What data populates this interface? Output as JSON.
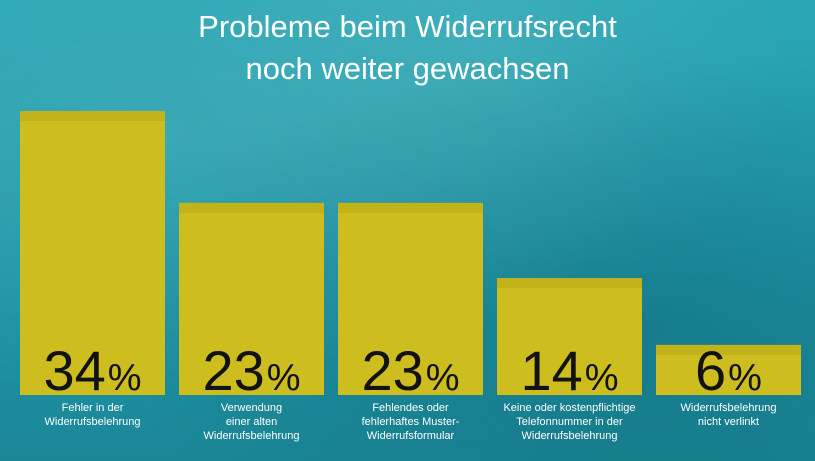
{
  "title_lines": [
    "Probleme beim Widerrufsrecht",
    "noch weiter gewachsen"
  ],
  "colors": {
    "background": "#22a0af",
    "bar": "#cdbd1f",
    "value_text": "#121212",
    "label_text": "#ffffff"
  },
  "chart_data": {
    "type": "bar",
    "title": "Probleme beim Widerrufsrecht noch weiter gewachsen",
    "categories": [
      [
        "Fehler in der",
        "Widerrufsbelehrung"
      ],
      [
        "Verwendung",
        "einer alten",
        "Widerrufsbelehrung"
      ],
      [
        "Fehlendes oder",
        "fehlerhaftes Muster-",
        "Widerrufsformular"
      ],
      [
        "Keine oder kostenpflichtige",
        "Telefonnummer in der",
        "Widerrufsbelehrung"
      ],
      [
        "Widerrufsbelehrung",
        "nicht verlinkt"
      ]
    ],
    "values": [
      34,
      23,
      23,
      14,
      6
    ],
    "value_suffix": "%",
    "ylim": [
      0,
      34
    ],
    "grid": false,
    "xlabel": "",
    "ylabel": ""
  }
}
